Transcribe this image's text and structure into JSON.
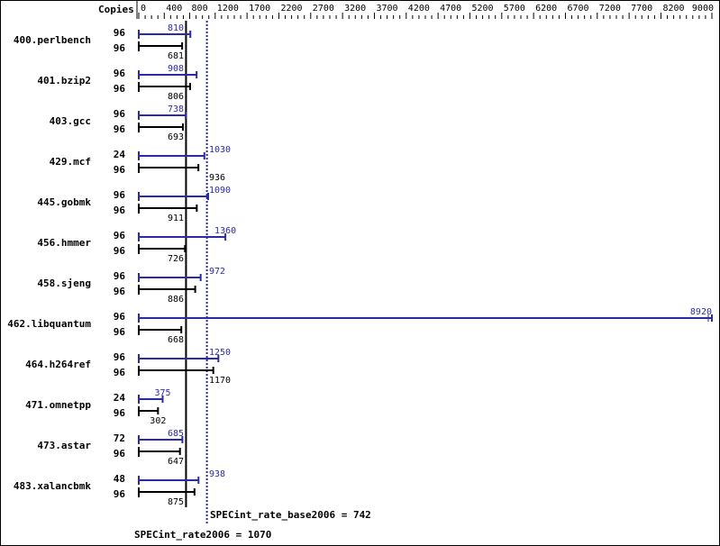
{
  "chart_data": {
    "type": "bar",
    "orientation": "horizontal",
    "header_label": "Copies",
    "axis_ticks": [
      0,
      400,
      800,
      1200,
      1700,
      2200,
      2700,
      3200,
      3700,
      4200,
      4700,
      5200,
      5700,
      6200,
      6700,
      7200,
      7700,
      8200,
      9000
    ],
    "xlim": [
      0,
      9000
    ],
    "categories": [
      "400.perlbench",
      "401.bzip2",
      "403.gcc",
      "429.mcf",
      "445.gobmk",
      "456.hmmer",
      "458.sjeng",
      "462.libquantum",
      "464.h264ref",
      "471.omnetpp",
      "473.astar",
      "483.xalancbmk"
    ],
    "series": [
      {
        "name": "SPECint_rate2006",
        "color": "#2b2ba8",
        "copies": [
          96,
          96,
          96,
          24,
          96,
          96,
          96,
          96,
          96,
          24,
          72,
          48
        ],
        "values": [
          810,
          908,
          738,
          1030,
          1090,
          1360,
          972,
          8920,
          1250,
          375,
          685,
          938
        ]
      },
      {
        "name": "SPECint_rate_base2006",
        "color": "#000000",
        "copies": [
          96,
          96,
          96,
          96,
          96,
          96,
          96,
          96,
          96,
          96,
          96,
          96
        ],
        "values": [
          681,
          806,
          693,
          936,
          911,
          726,
          886,
          668,
          1170,
          302,
          647,
          875
        ]
      }
    ],
    "base_summary": {
      "label": "SPECint_rate_base2006 = 742",
      "value": 742
    },
    "peak_summary": {
      "label": "SPECint_rate2006 = 1070",
      "value": 1070
    },
    "truncated": [
      "462.libquantum"
    ]
  }
}
